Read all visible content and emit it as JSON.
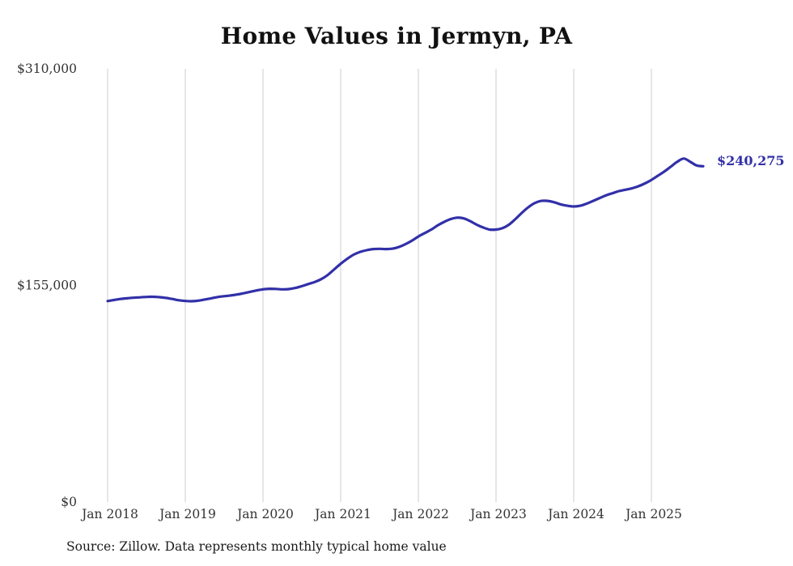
{
  "title": "Home Values in Jermyn, PA",
  "end_value_label": "$240,275",
  "source_note": "Source: Zillow. Data represents monthly typical home value",
  "colors": {
    "line": "#3230a8",
    "grid": "#cccccc",
    "axis_text": "#333333",
    "title_text": "#111111",
    "background": "#ffffff"
  },
  "chart_data": {
    "type": "line",
    "title": "Home Values in Jermyn, PA",
    "series_name": "Monthly typical home value",
    "x_start": "2018-01",
    "x_end": "2025-09",
    "frequency": "monthly",
    "x_tick_labels": [
      "Jan 2018",
      "Jan 2019",
      "Jan 2020",
      "Jan 2021",
      "Jan 2022",
      "Jan 2023",
      "Jan 2024",
      "Jan 2025"
    ],
    "y_tick_labels": [
      "$310,000",
      "$155,000",
      "$0"
    ],
    "y_tick_values": [
      310000,
      155000,
      0
    ],
    "ylim": [
      0,
      310000
    ],
    "grid": "vertical-gridlines-at-january-only",
    "legend": "none",
    "end_value": 240275,
    "end_label": "$240,275",
    "values": [
      143800,
      144600,
      145300,
      145800,
      146200,
      146500,
      146800,
      146900,
      146600,
      146100,
      145300,
      144400,
      143900,
      143700,
      144100,
      144900,
      145800,
      146700,
      147300,
      147800,
      148500,
      149400,
      150400,
      151400,
      152200,
      152600,
      152500,
      152200,
      152400,
      153200,
      154500,
      156000,
      157500,
      159500,
      162500,
      166500,
      170500,
      174000,
      177000,
      179000,
      180200,
      181000,
      181200,
      181000,
      181300,
      182500,
      184500,
      187000,
      190000,
      192500,
      195000,
      198000,
      200500,
      202500,
      203500,
      203000,
      201000,
      198500,
      196500,
      195000,
      195000,
      196000,
      198500,
      202500,
      207000,
      211000,
      214000,
      215500,
      215500,
      214500,
      213000,
      212000,
      211500,
      212000,
      213500,
      215500,
      217500,
      219500,
      221000,
      222500,
      223500,
      224500,
      226000,
      228000,
      230500,
      233500,
      236500,
      240000,
      243500,
      245800,
      243500,
      240800,
      240275
    ]
  }
}
